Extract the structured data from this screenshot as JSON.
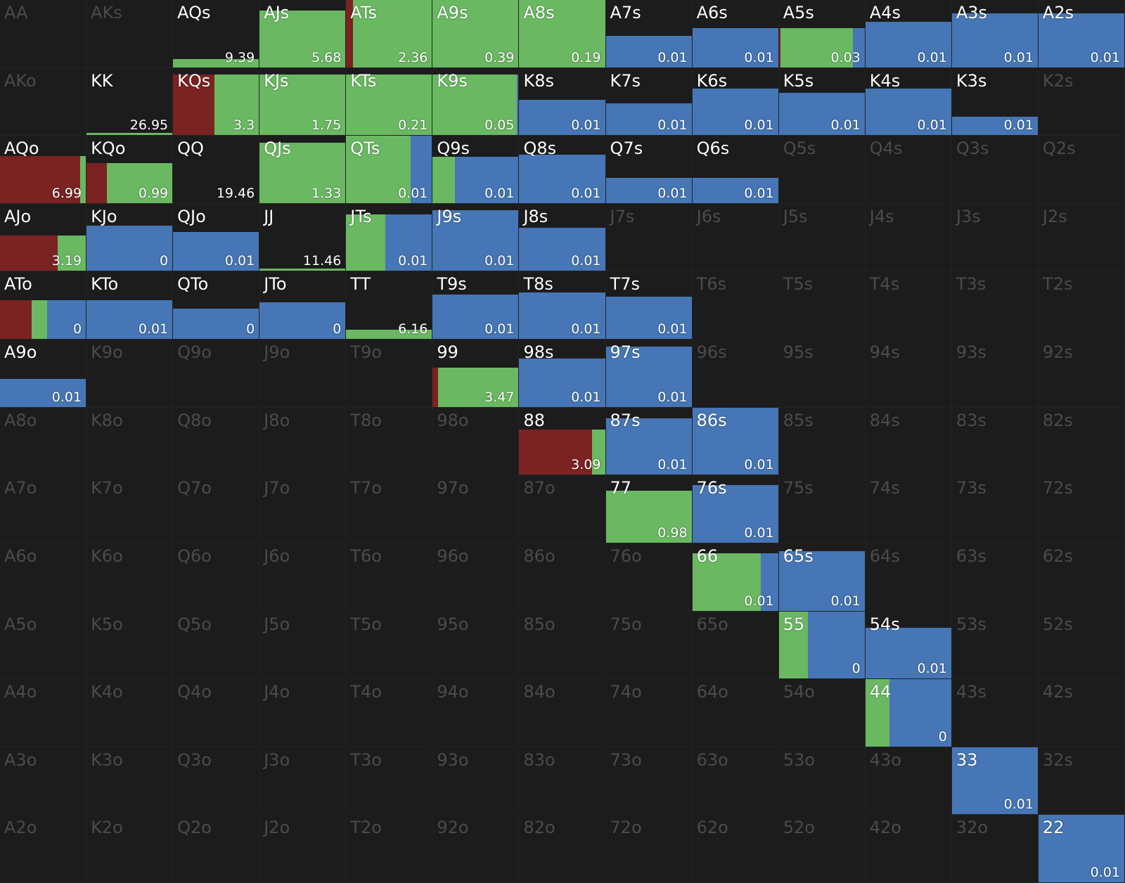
{
  "colors": {
    "background": "#1c1c1c",
    "grid_line": "#232323",
    "label_active": "#ffffff",
    "label_inactive": "#4b4b4b",
    "raise": "#7b2222",
    "call": "#6ab862",
    "fold": "#4676b5"
  },
  "rows": [
    [
      {
        "hand": "AA",
        "active": false
      },
      {
        "hand": "AKs",
        "active": false
      },
      {
        "hand": "AQs",
        "active": true,
        "value": "9.39",
        "fill": 0.12,
        "mix": {
          "raise": 0,
          "call": 1,
          "fold": 0
        }
      },
      {
        "hand": "AJs",
        "active": true,
        "value": "5.68",
        "fill": 0.84,
        "mix": {
          "raise": 0,
          "call": 1,
          "fold": 0
        }
      },
      {
        "hand": "ATs",
        "active": true,
        "value": "2.36",
        "fill": 1.0,
        "mix": {
          "raise": 0.08,
          "call": 0.92,
          "fold": 0
        }
      },
      {
        "hand": "A9s",
        "active": true,
        "value": "0.39",
        "fill": 1.0,
        "mix": {
          "raise": 0,
          "call": 1,
          "fold": 0
        }
      },
      {
        "hand": "A8s",
        "active": true,
        "value": "0.19",
        "fill": 1.0,
        "mix": {
          "raise": 0,
          "call": 1,
          "fold": 0
        }
      },
      {
        "hand": "A7s",
        "active": true,
        "value": "0.01",
        "fill": 0.47,
        "mix": {
          "raise": 0,
          "call": 0,
          "fold": 1
        }
      },
      {
        "hand": "A6s",
        "active": true,
        "value": "0.01",
        "fill": 0.58,
        "mix": {
          "raise": 0,
          "call": 0,
          "fold": 1
        }
      },
      {
        "hand": "A5s",
        "active": true,
        "value": "0.03",
        "fill": 0.58,
        "mix": {
          "raise": 0.02,
          "call": 0.84,
          "fold": 0.14
        }
      },
      {
        "hand": "A4s",
        "active": true,
        "value": "0.01",
        "fill": 0.68,
        "mix": {
          "raise": 0,
          "call": 0,
          "fold": 1
        }
      },
      {
        "hand": "A3s",
        "active": true,
        "value": "0.01",
        "fill": 0.8,
        "mix": {
          "raise": 0,
          "call": 0,
          "fold": 1
        }
      },
      {
        "hand": "A2s",
        "active": true,
        "value": "0.01",
        "fill": 0.8,
        "mix": {
          "raise": 0,
          "call": 0,
          "fold": 1
        }
      }
    ],
    [
      {
        "hand": "AKo",
        "active": false
      },
      {
        "hand": "KK",
        "active": true,
        "value": "26.95",
        "fill": 0.03,
        "mix": {
          "raise": 0,
          "call": 1,
          "fold": 0
        }
      },
      {
        "hand": "KQs",
        "active": true,
        "value": "3.3",
        "fill": 0.9,
        "mix": {
          "raise": 0.48,
          "call": 0.52,
          "fold": 0
        }
      },
      {
        "hand": "KJs",
        "active": true,
        "value": "1.75",
        "fill": 0.9,
        "mix": {
          "raise": 0,
          "call": 1,
          "fold": 0
        }
      },
      {
        "hand": "KTs",
        "active": true,
        "value": "0.21",
        "fill": 0.9,
        "mix": {
          "raise": 0,
          "call": 1,
          "fold": 0
        }
      },
      {
        "hand": "K9s",
        "active": true,
        "value": "0.05",
        "fill": 0.9,
        "mix": {
          "raise": 0,
          "call": 0.98,
          "fold": 0.02
        }
      },
      {
        "hand": "K8s",
        "active": true,
        "value": "0.01",
        "fill": 0.53,
        "mix": {
          "raise": 0,
          "call": 0,
          "fold": 1
        }
      },
      {
        "hand": "K7s",
        "active": true,
        "value": "0.01",
        "fill": 0.47,
        "mix": {
          "raise": 0,
          "call": 0,
          "fold": 1
        }
      },
      {
        "hand": "K6s",
        "active": true,
        "value": "0.01",
        "fill": 0.69,
        "mix": {
          "raise": 0,
          "call": 0,
          "fold": 1
        }
      },
      {
        "hand": "K5s",
        "active": true,
        "value": "0.01",
        "fill": 0.63,
        "mix": {
          "raise": 0,
          "call": 0,
          "fold": 1
        }
      },
      {
        "hand": "K4s",
        "active": true,
        "value": "0.01",
        "fill": 0.69,
        "mix": {
          "raise": 0,
          "call": 0,
          "fold": 1
        }
      },
      {
        "hand": "K3s",
        "active": true,
        "value": "0.01",
        "fill": 0.27,
        "mix": {
          "raise": 0,
          "call": 0,
          "fold": 1
        }
      },
      {
        "hand": "K2s",
        "active": false
      }
    ],
    [
      {
        "hand": "AQo",
        "active": true,
        "value": "6.99",
        "fill": 0.7,
        "mix": {
          "raise": 0.93,
          "call": 0.07,
          "fold": 0
        }
      },
      {
        "hand": "KQo",
        "active": true,
        "value": "0.99",
        "fill": 0.59,
        "mix": {
          "raise": 0.24,
          "call": 0.76,
          "fold": 0
        }
      },
      {
        "hand": "QQ",
        "active": false,
        "value": "19.46",
        "fill": 0,
        "mix": {
          "raise": 0,
          "call": 1,
          "fold": 0
        },
        "label_bright": true
      },
      {
        "hand": "QJs",
        "active": true,
        "value": "1.33",
        "fill": 0.9,
        "mix": {
          "raise": 0,
          "call": 1,
          "fold": 0
        }
      },
      {
        "hand": "QTs",
        "active": true,
        "value": "0.01",
        "fill": 1.0,
        "mix": {
          "raise": 0,
          "call": 0.75,
          "fold": 0.25
        }
      },
      {
        "hand": "Q9s",
        "active": true,
        "value": "0.01",
        "fill": 0.69,
        "mix": {
          "raise": 0,
          "call": 0.26,
          "fold": 0.74
        }
      },
      {
        "hand": "Q8s",
        "active": true,
        "value": "0.01",
        "fill": 0.72,
        "mix": {
          "raise": 0,
          "call": 0,
          "fold": 1
        }
      },
      {
        "hand": "Q7s",
        "active": true,
        "value": "0.01",
        "fill": 0.38,
        "mix": {
          "raise": 0,
          "call": 0,
          "fold": 1
        }
      },
      {
        "hand": "Q6s",
        "active": true,
        "value": "0.01",
        "fill": 0.38,
        "mix": {
          "raise": 0,
          "call": 0,
          "fold": 1
        }
      },
      {
        "hand": "Q5s",
        "active": false
      },
      {
        "hand": "Q4s",
        "active": false
      },
      {
        "hand": "Q3s",
        "active": false
      },
      {
        "hand": "Q2s",
        "active": false
      }
    ],
    [
      {
        "hand": "AJo",
        "active": true,
        "value": "3.19",
        "fill": 0.53,
        "mix": {
          "raise": 0.67,
          "call": 0.33,
          "fold": 0
        }
      },
      {
        "hand": "KJo",
        "active": true,
        "value": "0",
        "fill": 0.67,
        "mix": {
          "raise": 0,
          "call": 0,
          "fold": 1
        }
      },
      {
        "hand": "QJo",
        "active": true,
        "value": "0.01",
        "fill": 0.58,
        "mix": {
          "raise": 0,
          "call": 0,
          "fold": 1
        }
      },
      {
        "hand": "JJ",
        "active": true,
        "value": "11.46",
        "fill": 0.04,
        "mix": {
          "raise": 0,
          "call": 1,
          "fold": 0
        }
      },
      {
        "hand": "JTs",
        "active": true,
        "value": "0.01",
        "fill": 0.84,
        "mix": {
          "raise": 0,
          "call": 0.46,
          "fold": 0.54
        }
      },
      {
        "hand": "J9s",
        "active": true,
        "value": "0.01",
        "fill": 0.9,
        "mix": {
          "raise": 0,
          "call": 0,
          "fold": 1
        }
      },
      {
        "hand": "J8s",
        "active": true,
        "value": "0.01",
        "fill": 0.64,
        "mix": {
          "raise": 0,
          "call": 0,
          "fold": 1
        }
      },
      {
        "hand": "J7s",
        "active": false
      },
      {
        "hand": "J6s",
        "active": false
      },
      {
        "hand": "J5s",
        "active": false
      },
      {
        "hand": "J4s",
        "active": false
      },
      {
        "hand": "J3s",
        "active": false
      },
      {
        "hand": "J2s",
        "active": false
      }
    ],
    [
      {
        "hand": "ATo",
        "active": true,
        "value": "0",
        "fill": 0.58,
        "mix": {
          "raise": 0.37,
          "call": 0.18,
          "fold": 0.45
        }
      },
      {
        "hand": "KTo",
        "active": true,
        "value": "0.01",
        "fill": 0.58,
        "mix": {
          "raise": 0,
          "call": 0,
          "fold": 1
        }
      },
      {
        "hand": "QTo",
        "active": true,
        "value": "0",
        "fill": 0.45,
        "mix": {
          "raise": 0,
          "call": 0,
          "fold": 1
        }
      },
      {
        "hand": "JTo",
        "active": true,
        "value": "0",
        "fill": 0.54,
        "mix": {
          "raise": 0,
          "call": 0,
          "fold": 1
        }
      },
      {
        "hand": "TT",
        "active": true,
        "value": "6.16",
        "fill": 0.14,
        "mix": {
          "raise": 0,
          "call": 1,
          "fold": 0
        }
      },
      {
        "hand": "T9s",
        "active": true,
        "value": "0.01",
        "fill": 0.66,
        "mix": {
          "raise": 0,
          "call": 0,
          "fold": 1
        }
      },
      {
        "hand": "T8s",
        "active": true,
        "value": "0.01",
        "fill": 0.69,
        "mix": {
          "raise": 0,
          "call": 0,
          "fold": 1
        }
      },
      {
        "hand": "T7s",
        "active": true,
        "value": "0.01",
        "fill": 0.63,
        "mix": {
          "raise": 0,
          "call": 0,
          "fold": 1
        }
      },
      {
        "hand": "T6s",
        "active": false
      },
      {
        "hand": "T5s",
        "active": false
      },
      {
        "hand": "T4s",
        "active": false
      },
      {
        "hand": "T3s",
        "active": false
      },
      {
        "hand": "T2s",
        "active": false
      }
    ],
    [
      {
        "hand": "A9o",
        "active": true,
        "value": "0.01",
        "fill": 0.42,
        "mix": {
          "raise": 0,
          "call": 0,
          "fold": 1
        }
      },
      {
        "hand": "K9o",
        "active": false
      },
      {
        "hand": "Q9o",
        "active": false
      },
      {
        "hand": "J9o",
        "active": false
      },
      {
        "hand": "T9o",
        "active": false
      },
      {
        "hand": "99",
        "active": true,
        "value": "3.47",
        "fill": 0.58,
        "mix": {
          "raise": 0.06,
          "call": 0.94,
          "fold": 0
        }
      },
      {
        "hand": "98s",
        "active": true,
        "value": "0.01",
        "fill": 0.72,
        "mix": {
          "raise": 0,
          "call": 0,
          "fold": 1
        }
      },
      {
        "hand": "97s",
        "active": true,
        "value": "0.01",
        "fill": 0.9,
        "mix": {
          "raise": 0,
          "call": 0,
          "fold": 1
        }
      },
      {
        "hand": "96s",
        "active": false
      },
      {
        "hand": "95s",
        "active": false
      },
      {
        "hand": "94s",
        "active": false
      },
      {
        "hand": "93s",
        "active": false
      },
      {
        "hand": "92s",
        "active": false
      }
    ],
    [
      {
        "hand": "A8o",
        "active": false
      },
      {
        "hand": "K8o",
        "active": false
      },
      {
        "hand": "Q8o",
        "active": false
      },
      {
        "hand": "J8o",
        "active": false
      },
      {
        "hand": "T8o",
        "active": false
      },
      {
        "hand": "98o",
        "active": false
      },
      {
        "hand": "88",
        "active": true,
        "value": "3.09",
        "fill": 0.67,
        "mix": {
          "raise": 0.85,
          "call": 0.15,
          "fold": 0
        }
      },
      {
        "hand": "87s",
        "active": true,
        "value": "0.01",
        "fill": 0.84,
        "mix": {
          "raise": 0,
          "call": 0,
          "fold": 1
        }
      },
      {
        "hand": "86s",
        "active": true,
        "value": "0.01",
        "fill": 1.0,
        "mix": {
          "raise": 0,
          "call": 0,
          "fold": 1
        }
      },
      {
        "hand": "85s",
        "active": false
      },
      {
        "hand": "84s",
        "active": false
      },
      {
        "hand": "83s",
        "active": false
      },
      {
        "hand": "82s",
        "active": false
      }
    ],
    [
      {
        "hand": "A7o",
        "active": false
      },
      {
        "hand": "K7o",
        "active": false
      },
      {
        "hand": "Q7o",
        "active": false
      },
      {
        "hand": "J7o",
        "active": false
      },
      {
        "hand": "T7o",
        "active": false
      },
      {
        "hand": "97o",
        "active": false
      },
      {
        "hand": "87o",
        "active": false
      },
      {
        "hand": "77",
        "active": true,
        "value": "0.98",
        "fill": 0.77,
        "mix": {
          "raise": 0,
          "call": 1,
          "fold": 0
        }
      },
      {
        "hand": "76s",
        "active": true,
        "value": "0.01",
        "fill": 0.86,
        "mix": {
          "raise": 0,
          "call": 0,
          "fold": 1
        }
      },
      {
        "hand": "75s",
        "active": false
      },
      {
        "hand": "74s",
        "active": false
      },
      {
        "hand": "73s",
        "active": false
      },
      {
        "hand": "72s",
        "active": false
      }
    ],
    [
      {
        "hand": "A6o",
        "active": false
      },
      {
        "hand": "K6o",
        "active": false
      },
      {
        "hand": "Q6o",
        "active": false
      },
      {
        "hand": "J6o",
        "active": false
      },
      {
        "hand": "T6o",
        "active": false
      },
      {
        "hand": "96o",
        "active": false
      },
      {
        "hand": "86o",
        "active": false
      },
      {
        "hand": "76o",
        "active": false
      },
      {
        "hand": "66",
        "active": true,
        "value": "0.01",
        "fill": 0.85,
        "mix": {
          "raise": 0,
          "call": 0.8,
          "fold": 0.2
        }
      },
      {
        "hand": "65s",
        "active": true,
        "value": "0.01",
        "fill": 0.88,
        "mix": {
          "raise": 0,
          "call": 0,
          "fold": 1
        }
      },
      {
        "hand": "64s",
        "active": false
      },
      {
        "hand": "63s",
        "active": false
      },
      {
        "hand": "62s",
        "active": false
      }
    ],
    [
      {
        "hand": "A5o",
        "active": false
      },
      {
        "hand": "K5o",
        "active": false
      },
      {
        "hand": "Q5o",
        "active": false
      },
      {
        "hand": "J5o",
        "active": false
      },
      {
        "hand": "T5o",
        "active": false
      },
      {
        "hand": "95o",
        "active": false
      },
      {
        "hand": "85o",
        "active": false
      },
      {
        "hand": "75o",
        "active": false
      },
      {
        "hand": "65o",
        "active": false
      },
      {
        "hand": "55",
        "active": true,
        "value": "0",
        "fill": 1.0,
        "mix": {
          "raise": 0,
          "call": 0.34,
          "fold": 0.66
        }
      },
      {
        "hand": "54s",
        "active": true,
        "value": "0.01",
        "fill": 0.75,
        "mix": {
          "raise": 0,
          "call": 0,
          "fold": 1
        }
      },
      {
        "hand": "53s",
        "active": false
      },
      {
        "hand": "52s",
        "active": false
      }
    ],
    [
      {
        "hand": "A4o",
        "active": false
      },
      {
        "hand": "K4o",
        "active": false
      },
      {
        "hand": "Q4o",
        "active": false
      },
      {
        "hand": "J4o",
        "active": false
      },
      {
        "hand": "T4o",
        "active": false
      },
      {
        "hand": "94o",
        "active": false
      },
      {
        "hand": "84o",
        "active": false
      },
      {
        "hand": "74o",
        "active": false
      },
      {
        "hand": "64o",
        "active": false
      },
      {
        "hand": "54o",
        "active": false
      },
      {
        "hand": "44",
        "active": true,
        "value": "0",
        "fill": 1.0,
        "mix": {
          "raise": 0,
          "call": 0.28,
          "fold": 0.72
        }
      },
      {
        "hand": "43s",
        "active": false
      },
      {
        "hand": "42s",
        "active": false
      }
    ],
    [
      {
        "hand": "A3o",
        "active": false
      },
      {
        "hand": "K3o",
        "active": false
      },
      {
        "hand": "Q3o",
        "active": false
      },
      {
        "hand": "J3o",
        "active": false
      },
      {
        "hand": "T3o",
        "active": false
      },
      {
        "hand": "93o",
        "active": false
      },
      {
        "hand": "83o",
        "active": false
      },
      {
        "hand": "73o",
        "active": false
      },
      {
        "hand": "63o",
        "active": false
      },
      {
        "hand": "53o",
        "active": false
      },
      {
        "hand": "43o",
        "active": false
      },
      {
        "hand": "33",
        "active": true,
        "value": "0.01",
        "fill": 1.0,
        "mix": {
          "raise": 0,
          "call": 0,
          "fold": 1
        }
      },
      {
        "hand": "32s",
        "active": false
      }
    ],
    [
      {
        "hand": "A2o",
        "active": false
      },
      {
        "hand": "K2o",
        "active": false
      },
      {
        "hand": "Q2o",
        "active": false
      },
      {
        "hand": "J2o",
        "active": false
      },
      {
        "hand": "T2o",
        "active": false
      },
      {
        "hand": "92o",
        "active": false
      },
      {
        "hand": "82o",
        "active": false
      },
      {
        "hand": "72o",
        "active": false
      },
      {
        "hand": "62o",
        "active": false
      },
      {
        "hand": "52o",
        "active": false
      },
      {
        "hand": "42o",
        "active": false
      },
      {
        "hand": "32o",
        "active": false
      },
      {
        "hand": "22",
        "active": true,
        "value": "0.01",
        "fill": 1.0,
        "mix": {
          "raise": 0,
          "call": 0,
          "fold": 1
        }
      }
    ]
  ]
}
